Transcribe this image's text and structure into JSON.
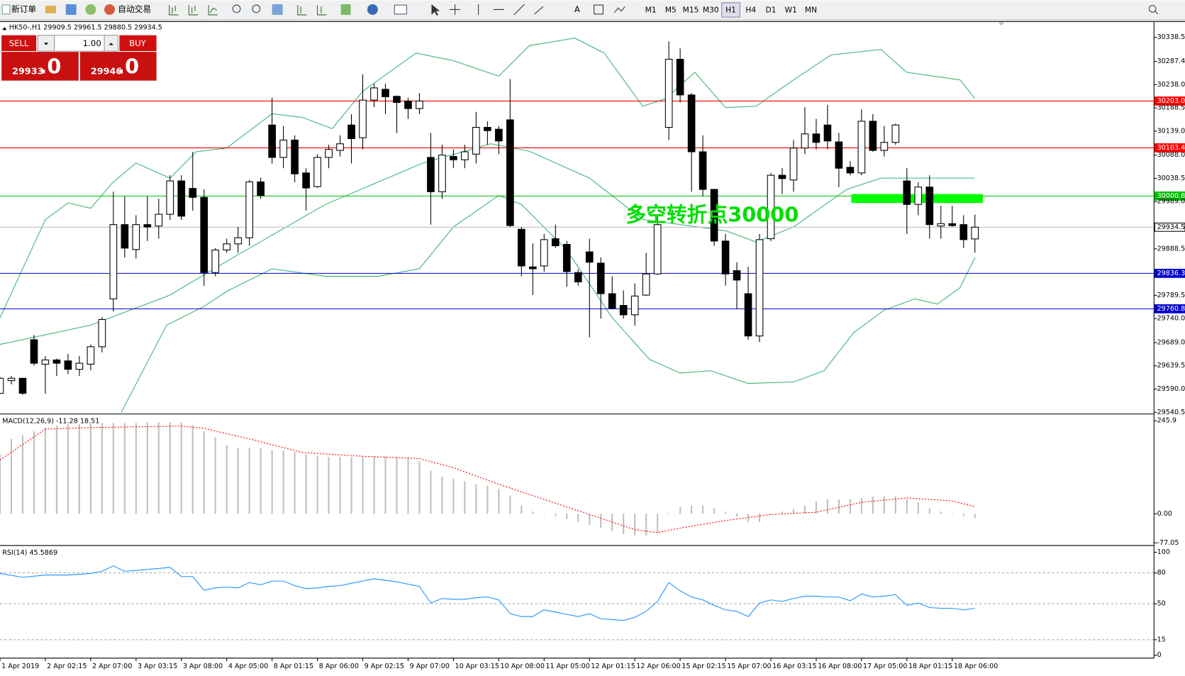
{
  "toolbar": {
    "new_order": "新订单",
    "auto_trade": "自动交易",
    "periods": [
      "M1",
      "M5",
      "M15",
      "M30",
      "H1",
      "H4",
      "D1",
      "W1",
      "MN"
    ],
    "active_period": 4
  },
  "trade_panel": {
    "sell": "SELL",
    "buy": "BUY",
    "volume": "1.00",
    "sell_price": "29933",
    "sell_fraction": ".0",
    "buy_price": "29946",
    "buy_fraction": ".0"
  },
  "chart_data": [
    {
      "type": "candlestick",
      "title": "HK50-,H1  29909.5 29961.5 29880.5 29934.5",
      "categories": [
        "1 Apr 2019",
        null,
        null,
        null,
        "2 Apr 02:15",
        null,
        null,
        null,
        "2 Apr 07:00",
        null,
        null,
        null,
        "3 Apr 03:15",
        null,
        null,
        null,
        "3 Apr 08:00",
        null,
        null,
        null,
        "4 Apr 05:00",
        null,
        null,
        null,
        "8 Apr 01:15",
        null,
        null,
        null,
        "8 Apr 06:00",
        null,
        null,
        null,
        "9 Apr 02:15",
        null,
        null,
        null,
        "9 Apr 07:00",
        null,
        null,
        null,
        "10 Apr 03:15",
        null,
        null,
        null,
        "10 Apr 08:00",
        null,
        null,
        null,
        "11 Apr 05:00",
        null,
        null,
        null,
        "12 Apr 01:15",
        null,
        null,
        null,
        "12 Apr 06:00",
        null,
        null,
        null,
        "15 Apr 02:15",
        null,
        null,
        null,
        "15 Apr 07:00",
        null,
        null,
        null,
        "16 Apr 03:15",
        null,
        null,
        null,
        "16 Apr 08:00",
        null,
        null,
        null,
        "17 Apr 05:00",
        null,
        null,
        null,
        "18 Apr 01:15",
        null,
        null,
        null,
        "18 Apr 06:00",
        null,
        null
      ],
      "open": [
        29581,
        29608,
        29613,
        29695,
        29643,
        29652,
        29650,
        29632,
        29643,
        29680,
        29782,
        29940,
        29887,
        29940,
        29937,
        29962,
        30033,
        30017,
        29998,
        29838,
        29886,
        29899,
        29912,
        30031,
        30152,
        30083,
        30120,
        30050,
        30021,
        30083,
        30098,
        30152,
        30125,
        30205,
        30228,
        30213,
        30203,
        30187,
        30083,
        30010,
        30085,
        30078,
        30090,
        30147,
        30143,
        30163,
        29930,
        29850,
        29852,
        29910,
        29898,
        29838,
        29882,
        29858,
        29793,
        29768,
        29748,
        29790,
        29835,
        30147,
        30292,
        30216,
        30095,
        30015,
        29905,
        29842,
        29793,
        29703,
        29910,
        30045,
        30035,
        30103,
        30133,
        30152,
        30116,
        30062,
        30050,
        30160,
        30098,
        30115,
        30033,
        29983,
        30020,
        29937,
        29942,
        29940,
        29909.5
      ],
      "high": [
        29616,
        29618,
        29613,
        29705,
        29660,
        29655,
        29665,
        29660,
        29685,
        29743,
        30010,
        30000,
        29960,
        30000,
        29995,
        30045,
        30045,
        30095,
        30015,
        29890,
        29910,
        29935,
        30035,
        30040,
        30210,
        30150,
        30130,
        30060,
        30090,
        30110,
        30130,
        30175,
        30260,
        30240,
        30240,
        30215,
        30210,
        30220,
        30135,
        30110,
        30100,
        30110,
        30180,
        30160,
        30150,
        30250,
        29935,
        29900,
        29920,
        29940,
        29905,
        29845,
        29910,
        29870,
        29830,
        29800,
        29815,
        29880,
        29960,
        30330,
        30315,
        30220,
        30130,
        30015,
        29920,
        29860,
        29850,
        29920,
        30050,
        30060,
        30120,
        30190,
        30165,
        30195,
        30135,
        30075,
        30185,
        30175,
        30150,
        30155,
        30060,
        30030,
        30045,
        29980,
        29980,
        29960,
        29961.5
      ],
      "low": [
        29581,
        29600,
        29578,
        29640,
        29580,
        29618,
        29622,
        29618,
        29630,
        29668,
        29755,
        29870,
        29868,
        29905,
        29910,
        29950,
        29950,
        29970,
        29810,
        29830,
        29880,
        29880,
        29895,
        29995,
        30070,
        30060,
        30030,
        29970,
        30018,
        30060,
        30085,
        30070,
        30100,
        30190,
        30175,
        30135,
        30165,
        30175,
        29940,
        29995,
        30060,
        30060,
        30070,
        30110,
        30090,
        29935,
        29830,
        29790,
        29840,
        29890,
        29808,
        29810,
        29700,
        29740,
        29760,
        29740,
        29725,
        29788,
        29833,
        30120,
        30200,
        30010,
        30000,
        29895,
        29810,
        29760,
        29695,
        29690,
        29905,
        30005,
        30010,
        30090,
        30100,
        30100,
        30020,
        30045,
        30045,
        30095,
        30085,
        30110,
        29920,
        29960,
        29910,
        29910,
        29935,
        29890,
        29880.5
      ],
      "close": [
        29613,
        29613,
        29581,
        29645,
        29652,
        29645,
        29632,
        29645,
        29680,
        29738,
        29940,
        29890,
        29940,
        29935,
        29962,
        30033,
        29958,
        29998,
        29838,
        29886,
        29899,
        29912,
        30031,
        30002,
        30083,
        30120,
        30048,
        30018,
        30083,
        30100,
        30112,
        30123,
        30205,
        30231,
        30212,
        30200,
        30187,
        30203,
        30010,
        30088,
        30078,
        30095,
        30147,
        30140,
        30118,
        29938,
        29852,
        29846,
        29908,
        29895,
        29840,
        29818,
        29860,
        29793,
        29762,
        29748,
        29788,
        29835,
        29940,
        30292,
        30216,
        30095,
        30015,
        29905,
        29835,
        29822,
        29703,
        29908,
        30045,
        30038,
        30103,
        30133,
        30115,
        30118,
        30060,
        30050,
        30160,
        30098,
        30115,
        30152,
        29983,
        30020,
        29940,
        29942,
        29938,
        29908,
        29934.5
      ],
      "up_color": "#ffffff",
      "down_color": "#000000",
      "ylim": [
        29537,
        30372
      ],
      "yticks": [
        30338.5,
        30287.4,
        {
          "value": 30238,
          "label": "30238.0"
        },
        30188.5,
        {
          "value": 30139,
          "label": "30139.0"
        },
        {
          "value": 30088,
          "label": "30088.0"
        },
        30038.5,
        {
          "value": 29989,
          "label": "29989.0"
        },
        29888.5,
        29789.5,
        {
          "value": 29740,
          "label": "29740.0"
        },
        {
          "value": 29689,
          "label": "29689.0"
        },
        29639.5,
        {
          "value": 29590,
          "label": "29590.0"
        },
        29540.5
      ],
      "bands": [
        {
          "color": "#3cb371",
          "x": [
            0,
            4,
            6,
            8,
            10,
            12,
            15,
            17.3,
            20,
            24,
            26.7,
            29.3,
            32,
            36.7,
            40,
            44,
            46.7,
            50.7,
            53.3,
            56.7,
            58.7,
            61.3,
            64,
            66.7,
            70,
            73.3,
            77.7,
            80,
            84.7,
            86
          ],
          "values": [
            29741.6,
            29950.7,
            29986,
            29975,
            30031,
            30071,
            30039,
            30095,
            30103,
            30176,
            30168,
            30144,
            30224,
            30305,
            30289,
            30256,
            30321,
            30337,
            30305,
            30192,
            30208,
            30264,
            30189,
            30192,
            30248,
            30301,
            30313,
            30264,
            30248,
            30208
          ]
        },
        {
          "color": "#3cb371",
          "x": [
            0,
            8,
            15,
            20,
            28.7,
            37.3,
            43.3,
            46.7,
            52,
            56.7,
            64,
            66.7,
            70,
            74.7,
            77.7,
            86
          ],
          "values": [
            29685,
            29726,
            29790,
            29862,
            29983,
            30071,
            30112,
            30096,
            30039,
            29951,
            29927,
            29903,
            29935,
            30015,
            30039,
            30039
          ]
        },
        {
          "color": "#3cb371",
          "x": [
            10.7,
            14.7,
            18,
            20,
            24,
            28.7,
            33.3,
            37,
            40,
            44,
            46,
            50,
            54,
            57.3,
            60,
            62.7,
            66,
            70,
            72.7,
            75.3,
            78,
            80.7,
            82.7,
            84.7,
            86
          ],
          "values": [
            29540.5,
            29726,
            29766,
            29798,
            29846,
            29830,
            29830,
            29846,
            29935,
            30002,
            29983,
            29886,
            29742,
            29653,
            29624,
            29629,
            29602,
            29605,
            29629,
            29710,
            29758,
            29782,
            29771,
            29806,
            29870
          ]
        }
      ],
      "levels": [
        {
          "value": 30203,
          "label": "30203.0",
          "color": "#ff0000",
          "text_color": "#ffffff"
        },
        {
          "value": 30103.4,
          "color": "#ff0000",
          "text_color": "#ffffff"
        },
        {
          "value": 30000.8,
          "color": "#00c000",
          "text_color": "#ffffff"
        },
        {
          "value": 29934.5,
          "color": "#c0c0c0",
          "text_color": "#000000"
        },
        {
          "value": 29836.3,
          "color": "#0000cd",
          "text_color": "#ffffff"
        },
        {
          "value": 29760.8,
          "color": "#0000cd",
          "text_color": "#ffffff"
        }
      ],
      "zone": {
        "x": [
          75.1,
          86.7
        ],
        "y": [
          29986,
          30005
        ],
        "color": "#00ff00"
      },
      "annotation": {
        "text": "多空转折点30000",
        "color": "#00dd00"
      }
    },
    {
      "type": "macd",
      "title": "MACD(12,26,9) -11.28 18.51",
      "ylim": [
        -82,
        262
      ],
      "yticks": [
        245.9,
        {
          "value": 0,
          "label": "0.00"
        },
        -77.05
      ],
      "histogram": {
        "color": "#c0c0c0",
        "values": [
          158,
          198,
          208,
          218,
          228,
          234,
          238,
          238,
          238,
          240,
          240,
          240,
          240,
          242,
          242,
          242,
          242,
          234,
          218,
          202,
          182,
          174,
          174,
          174,
          168,
          168,
          164,
          158,
          154,
          150,
          150,
          150,
          152,
          152,
          152,
          150,
          150,
          138,
          114,
          98,
          92,
          86,
          78,
          74,
          66,
          48,
          22,
          6,
          -2,
          -6,
          -14,
          -22,
          -30,
          -38,
          -46,
          -54,
          -58,
          -58,
          -50,
          -2,
          18,
          22,
          22,
          14,
          6,
          -8,
          -22,
          -22,
          -2,
          6,
          12,
          22,
          32,
          38,
          38,
          38,
          42,
          46,
          46,
          46,
          38,
          30,
          14,
          6,
          -2,
          -6,
          -11.28
        ]
      },
      "signal": {
        "color": "#ff0000",
        "x": [
          0,
          4,
          8,
          16,
          18,
          22,
          26.7,
          32,
          37,
          40,
          44,
          48,
          52,
          56,
          58,
          60,
          64,
          68,
          72,
          76,
          80,
          84,
          86
        ],
        "values": [
          142,
          224,
          228,
          232,
          226,
          198,
          162,
          152,
          146,
          122,
          78,
          38,
          -2,
          -42,
          -50,
          -38,
          -18,
          -2,
          4,
          30,
          42,
          34,
          18.51
        ]
      }
    },
    {
      "type": "rsi",
      "title": "RSI(14) 45.5869",
      "ylim": [
        -2.9,
        105.9
      ],
      "yticks": [
        100,
        80,
        50,
        15,
        0
      ],
      "levels": [
        80,
        50,
        15
      ],
      "level_color": "#a0a0a0",
      "series": {
        "color": "#1e90ff",
        "x": [
          0,
          2,
          4,
          6,
          8,
          9,
          10,
          11,
          12,
          15,
          16,
          17,
          18,
          19,
          20,
          21,
          22,
          23,
          24,
          25,
          26,
          27,
          28,
          29,
          30,
          31,
          32,
          33,
          34,
          35,
          37,
          38,
          39,
          40,
          41,
          42,
          43,
          44,
          45,
          46,
          47,
          48,
          49,
          50,
          51,
          52,
          53,
          54,
          55,
          56,
          57,
          58,
          59,
          60,
          61,
          62,
          63,
          64,
          65,
          66,
          67,
          68,
          69,
          70,
          71,
          72,
          73,
          74,
          75,
          76,
          77,
          78,
          79,
          80,
          81,
          82,
          83,
          84,
          85,
          86
        ],
        "values": [
          79.4,
          75.7,
          77.9,
          77.9,
          79.4,
          81.6,
          86.8,
          81.6,
          82.4,
          85.3,
          76.5,
          76.5,
          63.2,
          65.4,
          66.2,
          65.4,
          70.6,
          68.4,
          72.1,
          72.1,
          67.6,
          64.7,
          65.4,
          66.9,
          67.6,
          69.8,
          72.1,
          74.3,
          72.8,
          71.3,
          66.9,
          50.7,
          55.1,
          54.4,
          54.4,
          55.9,
          56.6,
          53.7,
          40.4,
          37.5,
          37.5,
          44.1,
          41.9,
          39.7,
          37.5,
          40.4,
          35.3,
          34.6,
          33.8,
          36.8,
          42.6,
          52.2,
          70.6,
          62.5,
          56.6,
          53.7,
          48.5,
          44.1,
          42.6,
          37.5,
          50.7,
          53.7,
          52.2,
          55.1,
          57.4,
          57.4,
          56.6,
          56.6,
          52.9,
          59.5,
          56.6,
          57.4,
          58.8,
          48.5,
          50.7,
          46.3,
          45.6,
          45.6,
          44.1,
          45.5869
        ]
      }
    }
  ]
}
